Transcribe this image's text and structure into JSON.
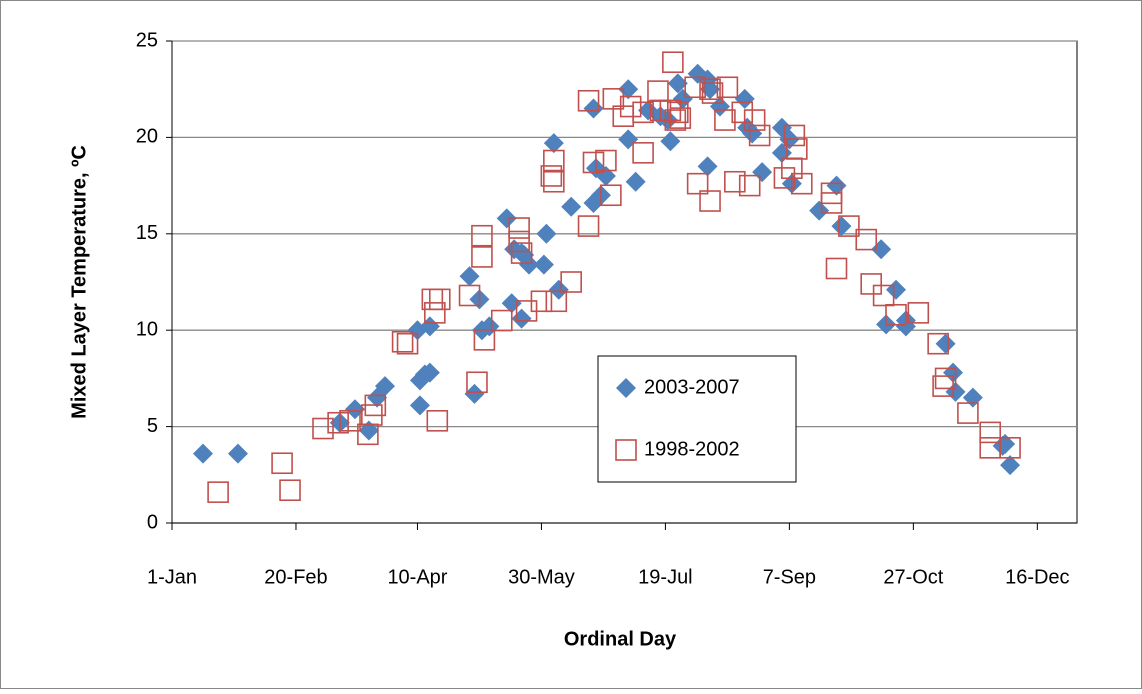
{
  "chart_data": {
    "type": "scatter",
    "x_label": "Ordinal Day",
    "y_label": "Mixed Layer Temperature, ºC",
    "xlim": [
      1,
      366
    ],
    "ylim": [
      0,
      25
    ],
    "xticks": [
      {
        "value": 1,
        "label": "1-Jan"
      },
      {
        "value": 51,
        "label": "20-Feb"
      },
      {
        "value": 100,
        "label": "10-Apr"
      },
      {
        "value": 150,
        "label": "30-May"
      },
      {
        "value": 200,
        "label": "19-Jul"
      },
      {
        "value": 250,
        "label": "7-Sep"
      },
      {
        "value": 300,
        "label": "27-Oct"
      },
      {
        "value": 350,
        "label": "16-Dec"
      }
    ],
    "yticks": [
      0,
      5,
      10,
      15,
      20,
      25
    ],
    "grid": true,
    "series": [
      {
        "name": "2003-2007",
        "color": "#4f81bd",
        "marker": "diamond",
        "x": [
          13.5,
          27.6,
          68.7,
          74.8,
          80.4,
          83.7,
          86.9,
          101,
          101,
          103,
          105,
          100,
          105,
          121,
          125,
          123,
          126,
          129,
          136,
          138,
          139,
          142,
          143,
          142,
          145,
          151,
          152,
          155,
          157,
          162,
          171,
          171,
          172,
          174,
          176,
          185,
          185,
          188,
          193,
          198,
          201,
          202,
          205,
          207,
          213,
          217,
          217,
          218,
          222,
          232,
          233,
          235,
          239,
          247,
          247,
          250,
          251,
          262,
          269,
          271,
          287,
          289,
          293,
          297,
          297,
          313,
          316,
          317,
          324,
          336,
          337,
          339
        ],
        "values": [
          3.6,
          3.6,
          5.2,
          5.9,
          4.8,
          6.5,
          7.1,
          6.1,
          7.4,
          7.7,
          7.8,
          10,
          10.2,
          12.8,
          11.6,
          6.7,
          10,
          10.2,
          15.8,
          11.4,
          14.2,
          14,
          13.9,
          10.6,
          13.4,
          13.4,
          15,
          19.7,
          12.1,
          16.4,
          16.6,
          21.5,
          18.4,
          17,
          18,
          22.5,
          19.9,
          17.7,
          21.4,
          21.1,
          20.9,
          19.8,
          22.8,
          22,
          23.3,
          23,
          18.5,
          22.5,
          21.6,
          22,
          20.5,
          20.2,
          18.2,
          20.5,
          19.2,
          19.9,
          17.6,
          16.2,
          17.5,
          15.4,
          14.2,
          10.3,
          12.1,
          10.5,
          10.2,
          9.3,
          7.8,
          6.8,
          6.5,
          4,
          4.1,
          3
        ]
      },
      {
        "name": "1998-2002",
        "color": "#c0504d",
        "marker": "square",
        "x": [
          19.6,
          45.4,
          48.6,
          61.9,
          68,
          72.8,
          80,
          81.6,
          83,
          94,
          96,
          106,
          107,
          108,
          109,
          121,
          124,
          126,
          126,
          127,
          134,
          141,
          141,
          142,
          144,
          150,
          154,
          155,
          155,
          156,
          162,
          169,
          169,
          171,
          176,
          178,
          179,
          183,
          186,
          191,
          191,
          197,
          198,
          202,
          203,
          204,
          205,
          206,
          212,
          213,
          218,
          218,
          219,
          224,
          225,
          228,
          231,
          234,
          236,
          238,
          248,
          251,
          252,
          253,
          255,
          267,
          267,
          269,
          274,
          281,
          283,
          288,
          293,
          302,
          310,
          312,
          313,
          322,
          331,
          331,
          339
        ],
        "values": [
          1.6,
          3.1,
          1.7,
          4.9,
          5.2,
          5.3,
          4.6,
          5.6,
          6.1,
          9.4,
          9.3,
          11.6,
          10.9,
          5.3,
          11.6,
          11.8,
          7.3,
          14.9,
          13.8,
          9.5,
          10.5,
          15.3,
          14.6,
          14,
          11,
          11.5,
          18,
          17.7,
          18.8,
          11.5,
          12.5,
          15.4,
          21.9,
          18.7,
          18.8,
          17,
          22,
          21.1,
          21.6,
          21.3,
          19.2,
          22.4,
          21.4,
          21.4,
          23.9,
          20.9,
          21.3,
          21,
          22.6,
          17.6,
          16.7,
          22.5,
          22.3,
          20.9,
          22.6,
          17.7,
          21.3,
          17.5,
          20.9,
          20.1,
          17.9,
          18.4,
          20.1,
          19.4,
          17.6,
          17.1,
          16.6,
          13.2,
          15.4,
          14.7,
          12.4,
          11.8,
          10.8,
          10.9,
          9.3,
          7.1,
          7.5,
          5.7,
          4.7,
          3.9,
          3.9
        ]
      }
    ]
  }
}
